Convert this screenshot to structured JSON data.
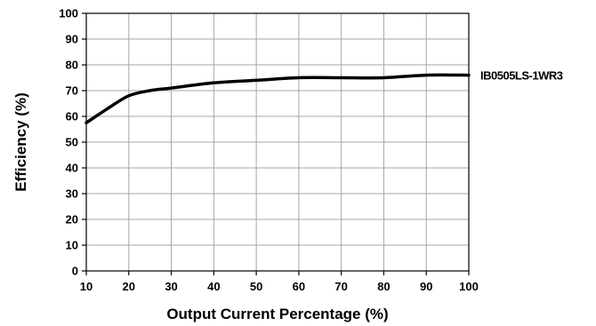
{
  "chart_data": {
    "type": "line",
    "title": "",
    "xlabel": "Output Current Percentage (%)",
    "ylabel": "Efficiency (%)",
    "xlim": [
      10,
      100
    ],
    "ylim": [
      0,
      100
    ],
    "x_ticks": [
      10,
      20,
      30,
      40,
      50,
      60,
      70,
      80,
      90,
      100
    ],
    "y_ticks": [
      0,
      10,
      20,
      30,
      40,
      50,
      60,
      70,
      80,
      90,
      100
    ],
    "grid": true,
    "legend": "right-of-line",
    "series": [
      {
        "name": "IB0505LS-1WR3",
        "color": "#000000",
        "x": [
          10,
          15,
          20,
          25,
          30,
          40,
          50,
          60,
          70,
          80,
          90,
          100
        ],
        "y": [
          57.5,
          63,
          68,
          70,
          71,
          73,
          74,
          75,
          75,
          75,
          76,
          76
        ]
      }
    ]
  }
}
